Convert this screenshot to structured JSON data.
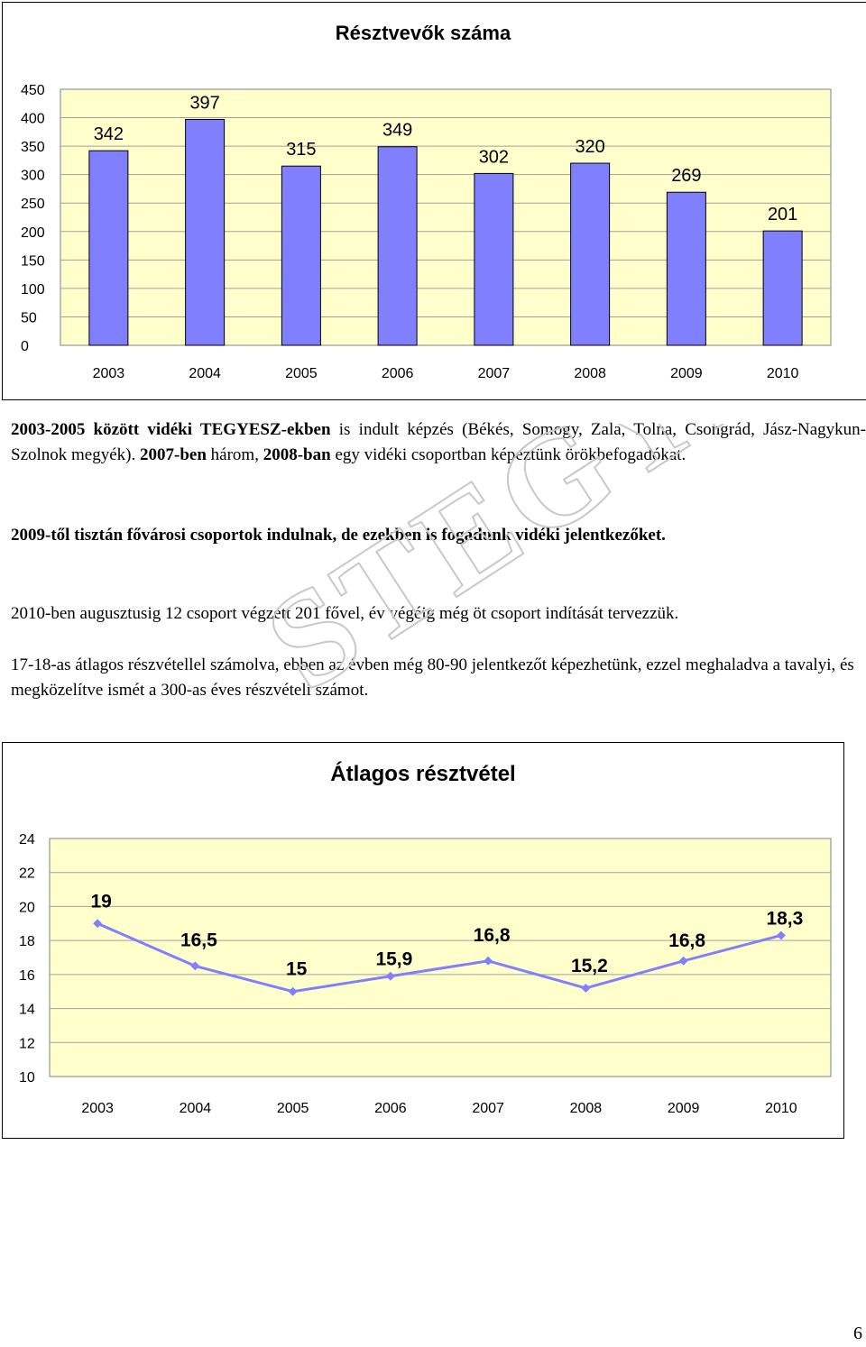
{
  "chart_data": [
    {
      "type": "bar",
      "title": "Résztvevők száma",
      "categories": [
        "2003",
        "2004",
        "2005",
        "2006",
        "2007",
        "2008",
        "2009",
        "2010"
      ],
      "values": [
        342,
        397,
        315,
        349,
        302,
        320,
        269,
        201
      ],
      "data_labels": [
        "342",
        "397",
        "315",
        "349",
        "302",
        "320",
        "269",
        "201"
      ],
      "ylim": [
        0,
        450
      ],
      "yticks": [
        "0",
        "50",
        "100",
        "150",
        "200",
        "250",
        "300",
        "350",
        "400",
        "450"
      ],
      "grid": true,
      "legend": "none",
      "colors": {
        "bar": "#8080ff",
        "plot_bg": "#ffffcc"
      }
    },
    {
      "type": "line",
      "title": "Átlagos résztvétel",
      "categories": [
        "2003",
        "2004",
        "2005",
        "2006",
        "2007",
        "2008",
        "2009",
        "2010"
      ],
      "values": [
        19,
        16.5,
        15,
        15.9,
        16.8,
        15.2,
        16.8,
        18.3
      ],
      "data_labels": [
        "19",
        "16,5",
        "15",
        "15,9",
        "16,8",
        "15,2",
        "16,8",
        "18,3"
      ],
      "ylim": [
        10,
        24
      ],
      "yticks": [
        "10",
        "12",
        "14",
        "16",
        "18",
        "20",
        "22",
        "24"
      ],
      "grid": true,
      "legend": "none",
      "colors": {
        "line": "#8080ff",
        "plot_bg": "#ffffcc"
      }
    }
  ],
  "paragraphs": {
    "p1": {
      "b1": "2003-2005 között vidéki TEGYESZ-ekben",
      "t1": " is indult képzés (Békés, Somogy, Zala, Tolna, Csongrád, Jász-Nagykun-Szolnok megyék). ",
      "b2": "2007-ben",
      "t2": " három, ",
      "b3": "2008-ban",
      "t3": " egy vidéki csoportban képeztünk örökbefogadókat."
    },
    "p2": "2009-től tisztán fővárosi csoportok indulnak, de ezekben is fogadunk vidéki jelentkezőket.",
    "p3": "2010-ben augusztusig 12 csoport végzett 201 fővel, év végéig még öt csoport indítását tervezzük.",
    "p4": "17-18-as átlagos részvétellel számolva, ebben az évben még 80-90 jelentkezőt képezhetünk, ezzel meghaladva a tavalyi, és megközelítve ismét a 300-as éves részvételi számot."
  },
  "watermark": "STEGYE",
  "page_number": "6"
}
